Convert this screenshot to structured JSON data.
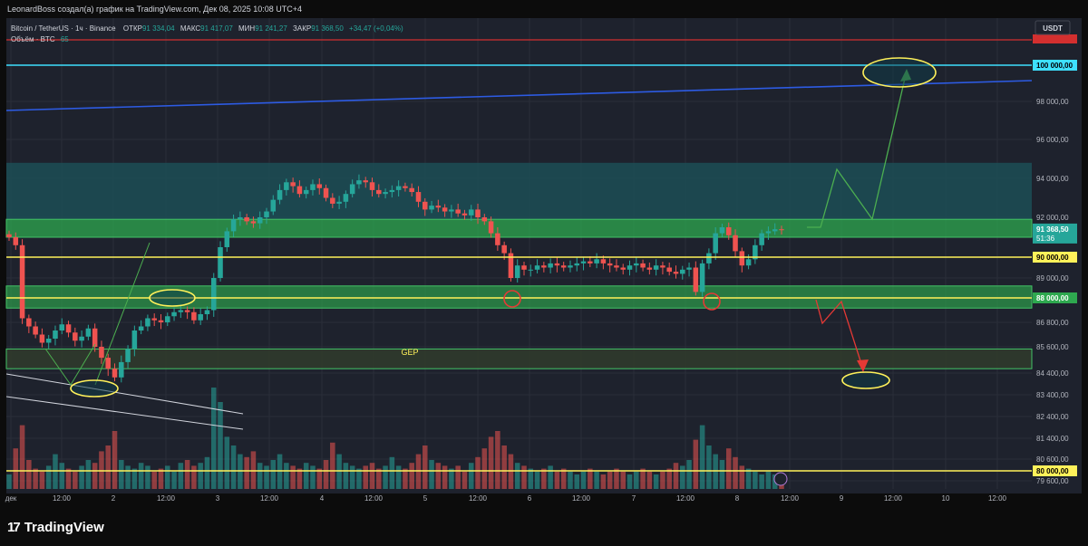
{
  "header": {
    "title": "LeonardBoss создал(а) график на TradingView.com, Дек 08, 2025 10:08 UTC+4"
  },
  "brand": {
    "mark": "17",
    "name": "TradingView"
  },
  "legend": {
    "symbol": "Bitcoin / TetherUS · 1ч · Binance",
    "o_label": "ОТКР",
    "o_value": "91 334,04",
    "h_label": "МАКС",
    "h_value": "91 417,07",
    "l_label": "МИН",
    "l_value": "91 241,27",
    "c_label": "ЗАКР",
    "c_value": "91 368,50",
    "change": "+34,47 (+0,04%)",
    "volume_label": "Объём · BTC",
    "volume_value": "65"
  },
  "currency_badge": "USDT",
  "annotation_text": "GEP",
  "colors": {
    "background": "#0c0c0c",
    "plot_bg": "#1e222d",
    "up": "#26a69a",
    "down": "#ef5350",
    "zone_green": "#2ea84f",
    "zone_teal": "#1c4e56",
    "yellow_line": "#fff15a",
    "cyan_line": "#3ee0ff",
    "blue_line": "#2d5be3",
    "red_line": "#d32f2f"
  },
  "chart_data": {
    "type": "candlestick",
    "symbol": "Bitcoin / TetherUS",
    "timeframe": "1ч",
    "exchange": "Binance",
    "ylim": [
      79300,
      101400
    ],
    "y_ticks": [
      {
        "v": 79600,
        "label": "79 600,00"
      },
      {
        "v": 80000,
        "label": "80 000,00"
      },
      {
        "v": 80600,
        "label": "80 600,00"
      },
      {
        "v": 81400,
        "label": "81 400,00"
      },
      {
        "v": 82400,
        "label": "82 400,00"
      },
      {
        "v": 83400,
        "label": "83 400,00"
      },
      {
        "v": 84400,
        "label": "84 400,00"
      },
      {
        "v": 85600,
        "label": "85 600,00"
      },
      {
        "v": 86800,
        "label": "86 800,00"
      },
      {
        "v": 88000,
        "label": "88 000,00"
      },
      {
        "v": 89000,
        "label": "89 000,00"
      },
      {
        "v": 90000,
        "label": "90 000,00"
      },
      {
        "v": 92000,
        "label": "92 000,00"
      },
      {
        "v": 94000,
        "label": "94 000,00"
      },
      {
        "v": 96000,
        "label": "96 000,00"
      },
      {
        "v": 98000,
        "label": "98 000,00"
      },
      {
        "v": 100000,
        "label": "100 000,00"
      }
    ],
    "x_ticks": [
      "дек",
      "12:00",
      "2",
      "12:00",
      "3",
      "12:00",
      "4",
      "12:00",
      "5",
      "12:00",
      "6",
      "12:00",
      "7",
      "12:00",
      "8",
      "12:00",
      "9",
      "12:00",
      "10",
      "12:00"
    ],
    "price_labels": {
      "last": "91 368,50",
      "countdown": "51:36",
      "level_90000": "90 000,00",
      "level_88000": "88 000,00",
      "level_80000": "80 000,00",
      "level_100000": "100 000,00"
    },
    "candles_close": [
      91000,
      90600,
      87000,
      86600,
      86200,
      85800,
      86000,
      86400,
      86700,
      86300,
      85900,
      86100,
      86500,
      85600,
      85100,
      84600,
      84200,
      84900,
      85500,
      86400,
      86600,
      87000,
      86900,
      86800,
      87100,
      87300,
      87400,
      87300,
      86900,
      87200,
      87400,
      89000,
      90500,
      91300,
      91900,
      92000,
      91800,
      91700,
      92000,
      92300,
      92900,
      93400,
      93800,
      93600,
      93200,
      93400,
      93700,
      93500,
      93000,
      92700,
      92800,
      93200,
      93700,
      93900,
      93800,
      93400,
      93200,
      93300,
      93400,
      93600,
      93500,
      93300,
      92800,
      92400,
      92600,
      92500,
      92300,
      92400,
      92200,
      92100,
      92400,
      92000,
      91800,
      91200,
      90600,
      90200,
      89000,
      89600,
      89400,
      89400,
      89600,
      89500,
      89700,
      89600,
      89500,
      89600,
      89700,
      89800,
      89700,
      89900,
      89700,
      89600,
      89500,
      89400,
      89600,
      89700,
      89500,
      89400,
      89600,
      89500,
      89300,
      89200,
      89400,
      89500,
      88300,
      89700,
      90200,
      91200,
      91500,
      91100,
      90300,
      89600,
      89900,
      90600,
      91200,
      91300,
      91400,
      91368
    ],
    "volume": [
      5,
      14,
      22,
      10,
      7,
      6,
      8,
      12,
      9,
      7,
      6,
      8,
      10,
      9,
      13,
      15,
      20,
      10,
      8,
      7,
      9,
      8,
      6,
      7,
      8,
      6,
      9,
      10,
      8,
      9,
      11,
      35,
      30,
      18,
      15,
      12,
      11,
      13,
      9,
      8,
      10,
      12,
      9,
      8,
      7,
      9,
      8,
      7,
      10,
      16,
      12,
      9,
      8,
      7,
      8,
      9,
      7,
      8,
      11,
      8,
      7,
      9,
      12,
      15,
      10,
      9,
      8,
      7,
      8,
      6,
      9,
      11,
      14,
      18,
      20,
      15,
      12,
      9,
      8,
      7,
      6,
      7,
      8,
      6,
      7,
      6,
      5,
      6,
      7,
      6,
      5,
      6,
      7,
      6,
      5,
      6,
      7,
      6,
      5,
      6,
      7,
      9,
      8,
      10,
      17,
      22,
      15,
      12,
      10,
      14,
      11,
      8,
      7,
      6,
      5,
      6,
      5,
      4
    ],
    "levels": {
      "yellow": [
        90000,
        88000,
        80000
      ],
      "cyan": 100000,
      "red": 101300,
      "zone_green_upper": [
        91000,
        91900
      ],
      "zone_green_middle": [
        87500,
        88600
      ],
      "zone_teal_upper": [
        91900,
        94800
      ],
      "zone_gap": [
        84600,
        85500
      ]
    },
    "annotations": [
      "GEP"
    ]
  }
}
